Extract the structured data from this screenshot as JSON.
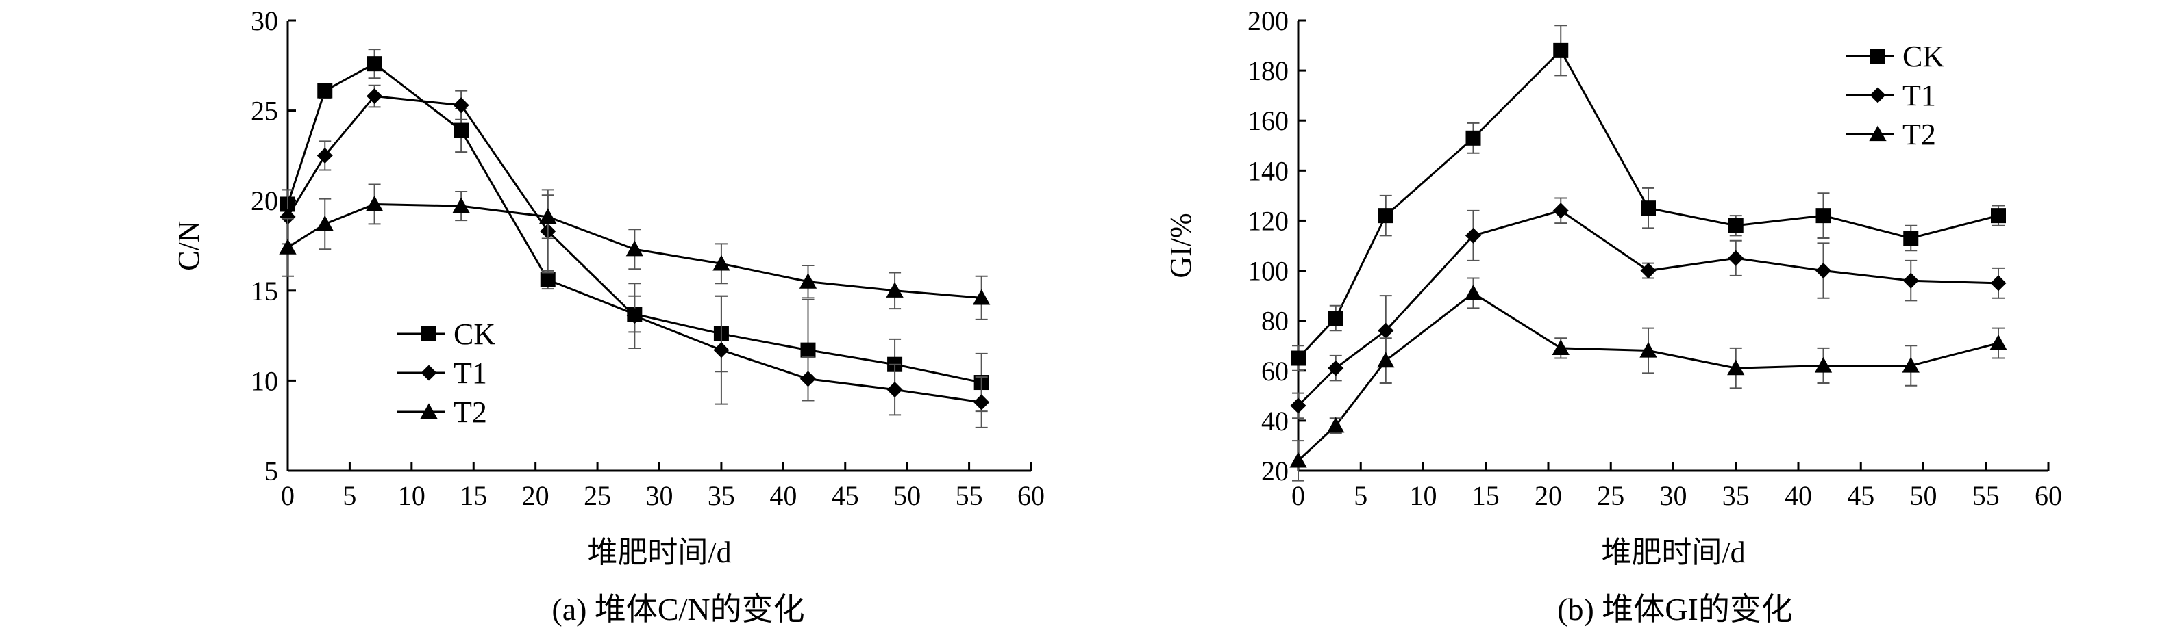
{
  "chart_data": [
    {
      "type": "line",
      "caption": "(a) 堆体C/N的变化",
      "xlabel": "堆肥时间/d",
      "ylabel": "C/N",
      "xlim": [
        0,
        60
      ],
      "ylim": [
        5,
        30
      ],
      "xticks": [
        0,
        5,
        10,
        15,
        20,
        25,
        30,
        35,
        40,
        45,
        50,
        55,
        60
      ],
      "yticks": [
        5,
        10,
        15,
        20,
        25,
        30
      ],
      "legend_position": "lower-left",
      "x": [
        0,
        3,
        7,
        14,
        21,
        28,
        35,
        42,
        49,
        56
      ],
      "series": [
        {
          "name": "CK",
          "marker": "square",
          "values": [
            19.8,
            26.1,
            27.6,
            23.9,
            15.6,
            13.7,
            12.6,
            11.7,
            10.9,
            9.9
          ],
          "errors": [
            0.8,
            0.4,
            0.8,
            1.2,
            0.5,
            1.0,
            2.1,
            2.8,
            1.4,
            1.6
          ]
        },
        {
          "name": "T1",
          "marker": "diamond",
          "values": [
            19.1,
            22.5,
            25.8,
            25.3,
            18.3,
            13.6,
            11.7,
            10.1,
            9.5,
            8.8
          ],
          "errors": [
            1.5,
            0.8,
            0.6,
            0.8,
            2.3,
            1.8,
            3.0,
            1.2,
            1.4,
            1.4
          ]
        },
        {
          "name": "T2",
          "marker": "triangle",
          "values": [
            17.4,
            18.7,
            19.8,
            19.7,
            19.1,
            17.3,
            16.5,
            15.5,
            15.0,
            14.6
          ],
          "errors": [
            1.6,
            1.4,
            1.1,
            0.8,
            1.2,
            1.1,
            1.1,
            0.9,
            1.0,
            1.2
          ]
        }
      ]
    },
    {
      "type": "line",
      "caption": "(b) 堆体GI的变化",
      "xlabel": "堆肥时间/d",
      "ylabel": "GI/%",
      "xlim": [
        0,
        60
      ],
      "ylim": [
        20,
        200
      ],
      "xticks": [
        0,
        5,
        10,
        15,
        20,
        25,
        30,
        35,
        40,
        45,
        50,
        55,
        60
      ],
      "yticks": [
        20,
        40,
        60,
        80,
        100,
        120,
        140,
        160,
        180,
        200
      ],
      "legend_position": "top-right",
      "x": [
        0,
        3,
        7,
        14,
        21,
        28,
        35,
        42,
        49,
        56
      ],
      "series": [
        {
          "name": "CK",
          "marker": "square",
          "values": [
            65,
            81,
            122,
            153,
            188,
            125,
            118,
            122,
            113,
            122
          ],
          "errors": [
            5,
            5,
            8,
            6,
            10,
            8,
            4,
            9,
            5,
            4
          ]
        },
        {
          "name": "T1",
          "marker": "diamond",
          "values": [
            46,
            61,
            76,
            114,
            124,
            100,
            105,
            100,
            96,
            95
          ],
          "errors": [
            5,
            5,
            14,
            10,
            5,
            3,
            7,
            11,
            8,
            6
          ]
        },
        {
          "name": "T2",
          "marker": "triangle",
          "values": [
            24,
            38,
            64,
            91,
            69,
            68,
            61,
            62,
            62,
            71
          ],
          "errors": [
            8,
            3,
            9,
            6,
            4,
            9,
            8,
            7,
            8,
            6
          ]
        }
      ]
    }
  ]
}
